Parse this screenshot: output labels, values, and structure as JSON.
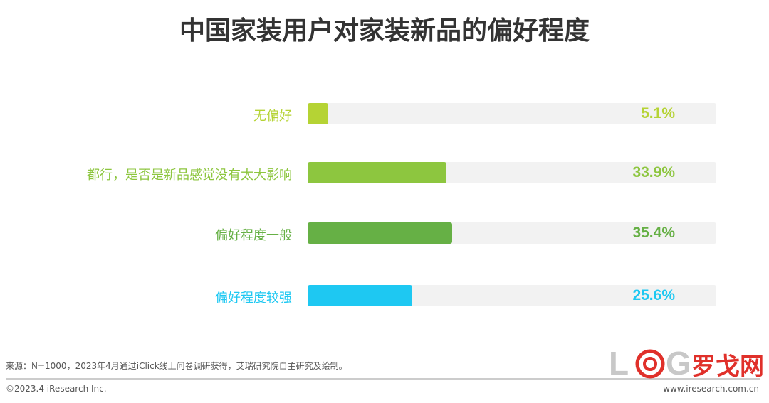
{
  "chart_data": {
    "type": "bar",
    "orientation": "horizontal",
    "title": "中国家装用户对家装新品的偏好程度",
    "categories": [
      "无偏好",
      "都行，是否是新品感觉没有太大影响",
      "偏好程度一般",
      "偏好程度较强"
    ],
    "values": [
      5.1,
      33.9,
      35.4,
      25.6
    ],
    "value_labels": [
      "5.1%",
      "33.9%",
      "35.4%",
      "25.6%"
    ],
    "colors": [
      "#b5d334",
      "#8dc63f",
      "#66b045",
      "#1ec8f2"
    ],
    "xlim": [
      0,
      100
    ],
    "grid": false
  },
  "footer": {
    "source": "来源：N=1000，2023年4月通过iClick线上问卷调研获得，艾瑞研究院自主研究及绘制。",
    "copyright": "©2023.4 iResearch Inc.",
    "website": "www.iresearch.com.cn",
    "watermark": "LOG罗戈网"
  }
}
